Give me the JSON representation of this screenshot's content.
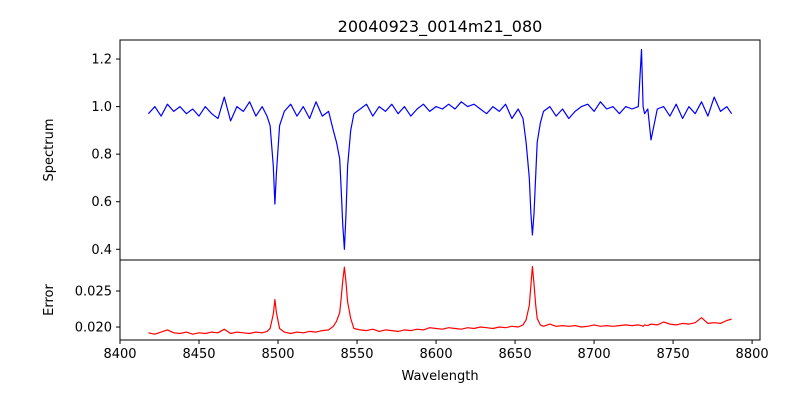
{
  "chart_data": {
    "title": "20040923_0014m21_080",
    "xlabel": "Wavelength",
    "xlim": [
      8400,
      8805
    ],
    "xticks": [
      8400,
      8450,
      8500,
      8550,
      8600,
      8650,
      8700,
      8750,
      8800
    ],
    "panels": [
      {
        "type": "line",
        "ylabel": "Spectrum",
        "ylim": [
          0.355,
          1.28
        ],
        "yticks": [
          0.4,
          0.6,
          0.8,
          1.0,
          1.2
        ],
        "ytick_labels": [
          "0.4",
          "0.6",
          "0.8",
          "1.0",
          "1.2"
        ],
        "color": "#0000ff",
        "series": {
          "x": [
            8418,
            8422,
            8426,
            8430,
            8434,
            8438,
            8442,
            8446,
            8450,
            8454,
            8458,
            8462,
            8466,
            8470,
            8474,
            8478,
            8482,
            8486,
            8490,
            8493,
            8495,
            8497,
            8498,
            8499,
            8501,
            8504,
            8508,
            8512,
            8516,
            8520,
            8524,
            8528,
            8532,
            8535,
            8537,
            8539,
            8540,
            8541,
            8542,
            8543,
            8544,
            8546,
            8548,
            8552,
            8556,
            8560,
            8564,
            8568,
            8572,
            8576,
            8580,
            8584,
            8588,
            8592,
            8596,
            8600,
            8604,
            8608,
            8612,
            8616,
            8620,
            8624,
            8628,
            8632,
            8636,
            8640,
            8644,
            8648,
            8652,
            8655,
            8657,
            8659,
            8660,
            8661,
            8662,
            8663,
            8664,
            8666,
            8668,
            8672,
            8676,
            8680,
            8684,
            8688,
            8692,
            8696,
            8700,
            8704,
            8708,
            8712,
            8716,
            8720,
            8724,
            8728,
            8730,
            8731,
            8732,
            8734,
            8736,
            8740,
            8744,
            8748,
            8752,
            8756,
            8760,
            8764,
            8768,
            8772,
            8776,
            8780,
            8784,
            8787
          ],
          "y": [
            0.97,
            1.0,
            0.96,
            1.01,
            0.98,
            1.0,
            0.97,
            0.99,
            0.96,
            1.0,
            0.97,
            0.95,
            1.04,
            0.94,
            1.0,
            0.98,
            1.02,
            0.96,
            1.0,
            0.96,
            0.92,
            0.75,
            0.59,
            0.72,
            0.92,
            0.98,
            1.01,
            0.96,
            1.0,
            0.95,
            1.02,
            0.96,
            0.98,
            0.9,
            0.85,
            0.78,
            0.65,
            0.5,
            0.4,
            0.55,
            0.75,
            0.9,
            0.97,
            0.99,
            1.01,
            0.96,
            1.0,
            0.98,
            1.01,
            0.97,
            1.0,
            0.96,
            0.99,
            1.01,
            0.98,
            1.0,
            0.99,
            1.01,
            0.99,
            1.02,
            1.0,
            1.01,
            0.99,
            0.97,
            1.0,
            0.98,
            1.01,
            0.95,
            0.99,
            0.95,
            0.85,
            0.7,
            0.55,
            0.46,
            0.55,
            0.7,
            0.85,
            0.93,
            0.98,
            1.0,
            0.96,
            0.99,
            0.95,
            0.98,
            1.0,
            1.01,
            0.98,
            1.02,
            0.99,
            1.0,
            0.97,
            1.0,
            0.99,
            1.0,
            1.24,
            1.0,
            0.97,
            0.99,
            0.86,
            0.99,
            1.0,
            0.96,
            1.01,
            0.95,
            1.0,
            0.97,
            1.02,
            0.96,
            1.04,
            0.98,
            1.0,
            0.97
          ]
        }
      },
      {
        "type": "line",
        "ylabel": "Error",
        "ylim": [
          0.0182,
          0.0293
        ],
        "yticks": [
          0.02,
          0.025
        ],
        "ytick_labels": [
          "0.020",
          "0.025"
        ],
        "color": "#ff0000",
        "series": {
          "x": [
            8418,
            8422,
            8426,
            8430,
            8434,
            8438,
            8442,
            8446,
            8450,
            8454,
            8458,
            8462,
            8466,
            8470,
            8474,
            8478,
            8482,
            8486,
            8490,
            8493,
            8495,
            8497,
            8498,
            8499,
            8501,
            8504,
            8508,
            8512,
            8516,
            8520,
            8524,
            8528,
            8532,
            8535,
            8537,
            8539,
            8540,
            8541,
            8542,
            8543,
            8544,
            8546,
            8548,
            8552,
            8556,
            8560,
            8564,
            8568,
            8572,
            8576,
            8580,
            8584,
            8588,
            8592,
            8596,
            8600,
            8604,
            8608,
            8612,
            8616,
            8620,
            8624,
            8628,
            8632,
            8636,
            8640,
            8644,
            8648,
            8652,
            8655,
            8657,
            8659,
            8660,
            8661,
            8662,
            8663,
            8664,
            8666,
            8668,
            8672,
            8676,
            8680,
            8684,
            8688,
            8692,
            8696,
            8700,
            8704,
            8708,
            8712,
            8716,
            8720,
            8724,
            8728,
            8730,
            8731,
            8732,
            8734,
            8736,
            8740,
            8744,
            8748,
            8752,
            8756,
            8760,
            8764,
            8768,
            8772,
            8776,
            8780,
            8784,
            8787
          ],
          "y": [
            0.0192,
            0.019,
            0.0193,
            0.0196,
            0.0192,
            0.0191,
            0.0193,
            0.019,
            0.0192,
            0.0191,
            0.0193,
            0.0192,
            0.0197,
            0.0191,
            0.0193,
            0.0192,
            0.0191,
            0.0193,
            0.0192,
            0.0194,
            0.0198,
            0.0218,
            0.0238,
            0.022,
            0.0198,
            0.0193,
            0.0191,
            0.0193,
            0.0192,
            0.0194,
            0.0193,
            0.0195,
            0.0196,
            0.0201,
            0.0208,
            0.022,
            0.024,
            0.0265,
            0.0283,
            0.0262,
            0.0235,
            0.0212,
            0.0198,
            0.0196,
            0.0195,
            0.0197,
            0.0194,
            0.0196,
            0.0195,
            0.0194,
            0.0196,
            0.0195,
            0.0197,
            0.0196,
            0.0199,
            0.0198,
            0.0197,
            0.0199,
            0.0198,
            0.0197,
            0.0199,
            0.0198,
            0.02,
            0.0199,
            0.0198,
            0.02,
            0.0199,
            0.0201,
            0.02,
            0.0203,
            0.021,
            0.023,
            0.0258,
            0.0284,
            0.026,
            0.0232,
            0.0212,
            0.0203,
            0.0201,
            0.0204,
            0.0201,
            0.0202,
            0.0201,
            0.0202,
            0.02,
            0.0201,
            0.0203,
            0.0201,
            0.0202,
            0.0201,
            0.0202,
            0.0203,
            0.0202,
            0.0203,
            0.0202,
            0.0201,
            0.0203,
            0.0202,
            0.0204,
            0.0203,
            0.0207,
            0.0204,
            0.0203,
            0.0205,
            0.0204,
            0.0206,
            0.0213,
            0.0205,
            0.0206,
            0.0205,
            0.0209,
            0.0211
          ]
        }
      }
    ]
  }
}
